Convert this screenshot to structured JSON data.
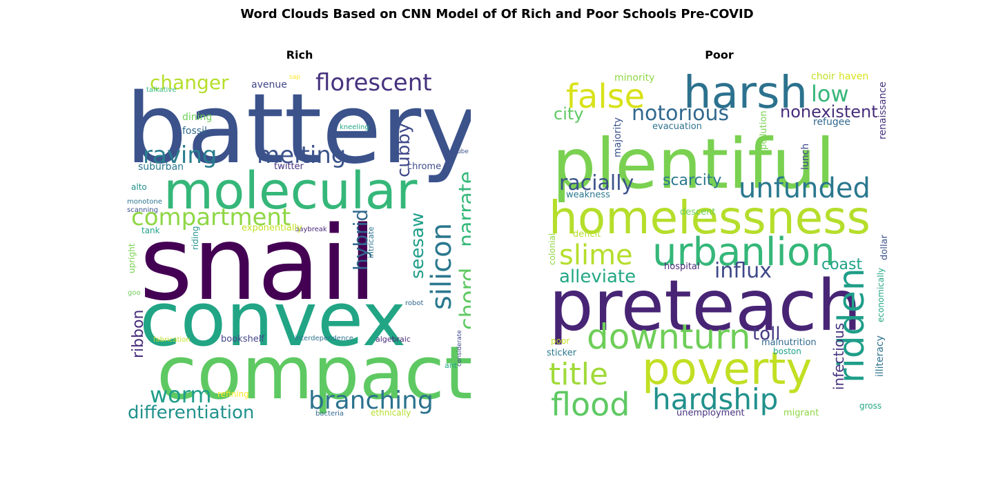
{
  "title": "Word Clouds Based on CNN Model of Of Rich and Poor Schools Pre-COVID",
  "panels": [
    {
      "title": "Rich",
      "words": [
        {
          "text": "battery",
          "color": "#3b528b"
        },
        {
          "text": "snail",
          "color": "#440154"
        },
        {
          "text": "convex",
          "color": "#21a585"
        },
        {
          "text": "compact",
          "color": "#5ec962"
        },
        {
          "text": "molecular",
          "color": "#35b779"
        },
        {
          "text": "compartment",
          "color": "#8fd744"
        },
        {
          "text": "raving",
          "color": "#287d8e"
        },
        {
          "text": "melting",
          "color": "#3b528b"
        },
        {
          "text": "changer",
          "color": "#b5de2b"
        },
        {
          "text": "florescent",
          "color": "#46327e"
        },
        {
          "text": "branching",
          "color": "#2c728e"
        },
        {
          "text": "differentiation",
          "color": "#21918c"
        },
        {
          "text": "worm",
          "color": "#1f9e89"
        },
        {
          "text": "silicon",
          "color": "#2a788e"
        },
        {
          "text": "chord",
          "color": "#5ec962"
        },
        {
          "text": "narrate",
          "color": "#35b779"
        },
        {
          "text": "hybrid",
          "color": "#31688e"
        },
        {
          "text": "seesaw",
          "color": "#1f9e89"
        },
        {
          "text": "cubby",
          "color": "#3e4989"
        },
        {
          "text": "ribbon",
          "color": "#472d7b"
        },
        {
          "text": "fossil",
          "color": "#31688e"
        },
        {
          "text": "dining",
          "color": "#6ece58"
        },
        {
          "text": "avenue",
          "color": "#414487"
        },
        {
          "text": "talkative",
          "color": "#35b779"
        },
        {
          "text": "sap",
          "color": "#fde725"
        },
        {
          "text": "kneeling",
          "color": "#22a884"
        },
        {
          "text": "twitter",
          "color": "#46327e"
        },
        {
          "text": "chrome",
          "color": "#3e4989"
        },
        {
          "text": "suburban",
          "color": "#2a788e"
        },
        {
          "text": "alto",
          "color": "#21918c"
        },
        {
          "text": "monotone",
          "color": "#2c728e"
        },
        {
          "text": "scanning",
          "color": "#3b528b"
        },
        {
          "text": "daybreak",
          "color": "#482878"
        },
        {
          "text": "exponentially",
          "color": "#c2df23"
        },
        {
          "text": "tank",
          "color": "#1fa187"
        },
        {
          "text": "riding",
          "color": "#21918c"
        },
        {
          "text": "intricate",
          "color": "#2c728e"
        },
        {
          "text": "upright",
          "color": "#7ad151"
        },
        {
          "text": "goo",
          "color": "#6ece58"
        },
        {
          "text": "cube",
          "color": "#3b528b"
        },
        {
          "text": "robot",
          "color": "#31688e"
        },
        {
          "text": "fabrication",
          "color": "#c2df23"
        },
        {
          "text": "bookshelf",
          "color": "#414487"
        },
        {
          "text": "interdependence",
          "color": "#2c728e"
        },
        {
          "text": "algebraic",
          "color": "#482878"
        },
        {
          "text": "ant",
          "color": "#22a884"
        },
        {
          "text": "considerate",
          "color": "#3e4989"
        },
        {
          "text": "refining",
          "color": "#fde725"
        },
        {
          "text": "bacteria",
          "color": "#31688e"
        },
        {
          "text": "ethnically",
          "color": "#b5de2b"
        }
      ]
    },
    {
      "title": "Poor",
      "words": [
        {
          "text": "plentiful",
          "color": "#7ad151"
        },
        {
          "text": "homelessness",
          "color": "#b5de2b"
        },
        {
          "text": "preteach",
          "color": "#482475"
        },
        {
          "text": "harsh",
          "color": "#2c728e"
        },
        {
          "text": "false",
          "color": "#d8e219"
        },
        {
          "text": "urbanlion",
          "color": "#35b779"
        },
        {
          "text": "poverty",
          "color": "#c2df23"
        },
        {
          "text": "downturn",
          "color": "#6ece58"
        },
        {
          "text": "ridden",
          "color": "#1f9e89"
        },
        {
          "text": "hardship",
          "color": "#21918c"
        },
        {
          "text": "flood",
          "color": "#5ec962"
        },
        {
          "text": "title",
          "color": "#a0da39"
        },
        {
          "text": "unfunded",
          "color": "#2a788e"
        },
        {
          "text": "notorious",
          "color": "#31688e"
        },
        {
          "text": "racially",
          "color": "#3b528b"
        },
        {
          "text": "slime",
          "color": "#b5de2b"
        },
        {
          "text": "influx",
          "color": "#3e4989"
        },
        {
          "text": "alleviate",
          "color": "#22a884"
        },
        {
          "text": "low",
          "color": "#35b779"
        },
        {
          "text": "nonexistent",
          "color": "#472d7b"
        },
        {
          "text": "city",
          "color": "#5ec962"
        },
        {
          "text": "scarcity",
          "color": "#2a788e"
        },
        {
          "text": "toll",
          "color": "#443983"
        },
        {
          "text": "infectious",
          "color": "#46327e"
        },
        {
          "text": "coast",
          "color": "#1fa187"
        },
        {
          "text": "minority",
          "color": "#8fd744"
        },
        {
          "text": "choir",
          "color": "#c2df23"
        },
        {
          "text": "haven",
          "color": "#d8e219"
        },
        {
          "text": "renaissance",
          "color": "#46327e"
        },
        {
          "text": "refugee",
          "color": "#31688e"
        },
        {
          "text": "evacuation",
          "color": "#2c728e"
        },
        {
          "text": "majority",
          "color": "#3b528b"
        },
        {
          "text": "pollution",
          "color": "#7ad151"
        },
        {
          "text": "lunch",
          "color": "#3e4989"
        },
        {
          "text": "weakness",
          "color": "#2a788e"
        },
        {
          "text": "descent",
          "color": "#6ece58"
        },
        {
          "text": "deficit",
          "color": "#b5de2b"
        },
        {
          "text": "colonial",
          "color": "#8fd744"
        },
        {
          "text": "hospital",
          "color": "#482878"
        },
        {
          "text": "dollar",
          "color": "#3b528b"
        },
        {
          "text": "economically",
          "color": "#22a884"
        },
        {
          "text": "illiteracy",
          "color": "#2c728e"
        },
        {
          "text": "malnutrition",
          "color": "#31688e"
        },
        {
          "text": "boston",
          "color": "#1fa187"
        },
        {
          "text": "poor",
          "color": "#c2df23"
        },
        {
          "text": "sticker",
          "color": "#2a788e"
        },
        {
          "text": "unemployment",
          "color": "#46327e"
        },
        {
          "text": "migrant",
          "color": "#8fd744"
        },
        {
          "text": "gross",
          "color": "#22a884"
        }
      ]
    }
  ]
}
